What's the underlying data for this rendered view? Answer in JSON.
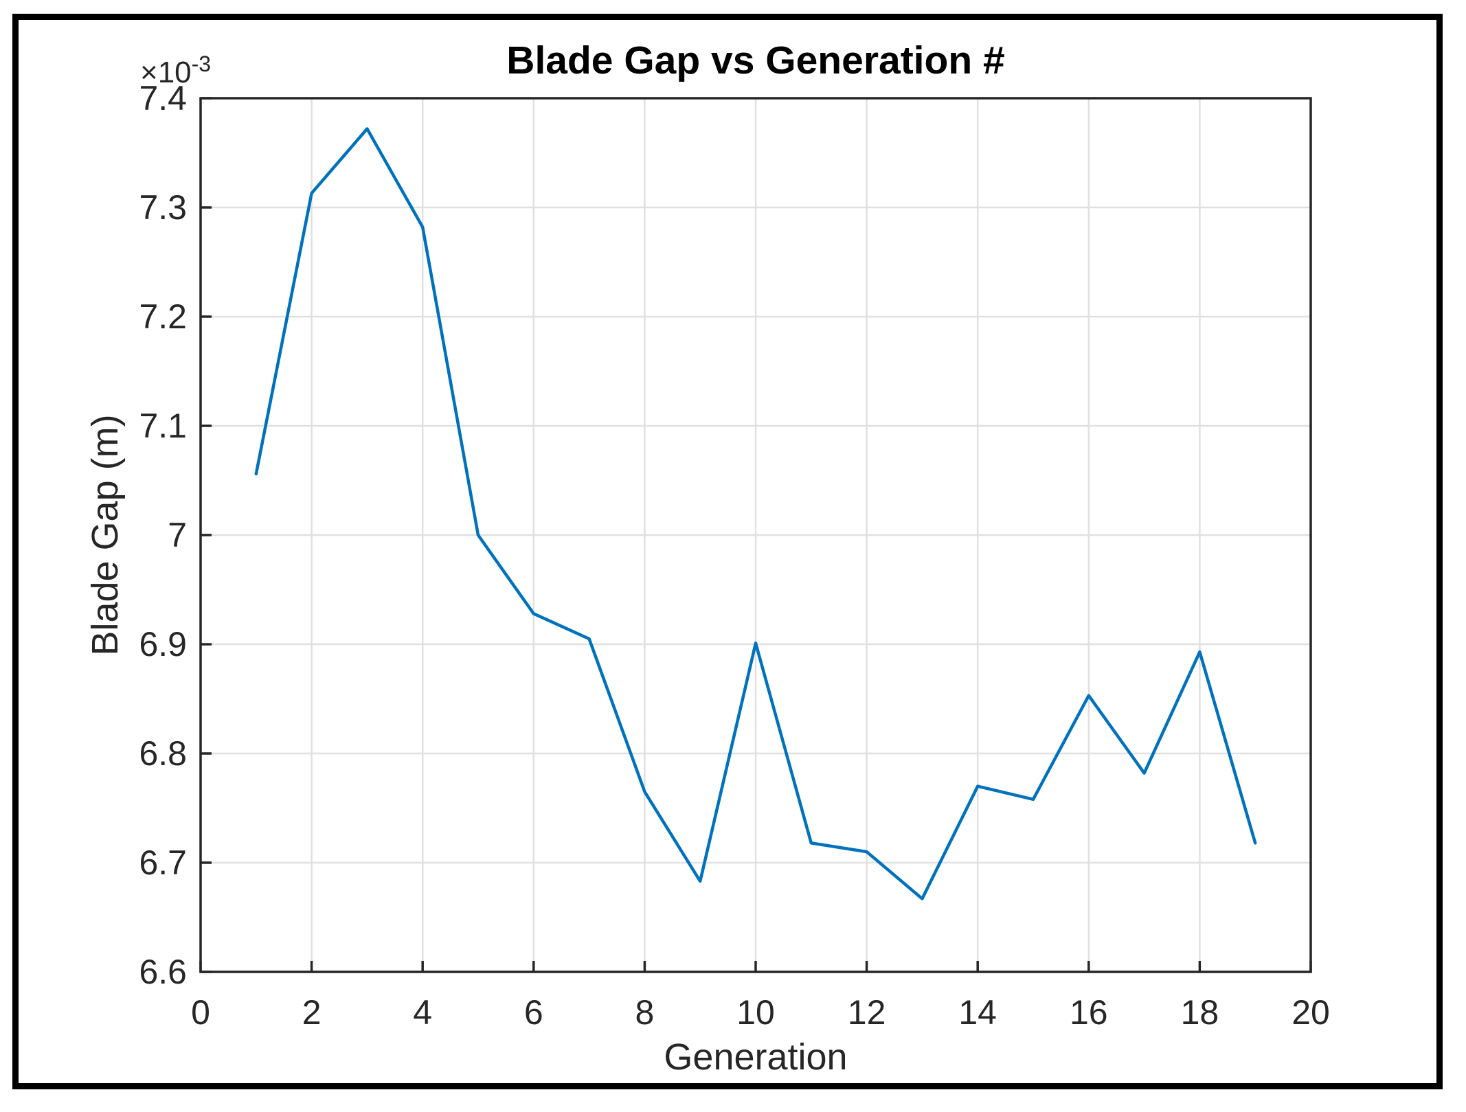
{
  "figure": {
    "background": "#ffffff",
    "border_color": "#000000"
  },
  "chart_data": {
    "type": "line",
    "title": "Blade Gap vs Generation #",
    "xlabel": "Generation",
    "ylabel": "Blade Gap (m)",
    "y_multiplier": {
      "base": "×10",
      "exponent": "-3"
    },
    "xlim": [
      0,
      20
    ],
    "ylim_e3": [
      6.6,
      7.4
    ],
    "grid": true,
    "grid_color": "#e0e0e0",
    "axis_color": "#262626",
    "x_ticks": {
      "values": [
        0,
        2,
        4,
        6,
        8,
        10,
        12,
        14,
        16,
        18,
        20
      ],
      "labels": [
        "0",
        "2",
        "4",
        "6",
        "8",
        "10",
        "12",
        "14",
        "16",
        "18",
        "20"
      ]
    },
    "y_ticks": {
      "values": [
        6.6,
        6.7,
        6.8,
        6.9,
        7.0,
        7.1,
        7.2,
        7.3,
        7.4
      ],
      "labels": [
        "6.6",
        "6.7",
        "6.8",
        "6.9",
        "7",
        "7.1",
        "7.2",
        "7.3",
        "7.4"
      ]
    },
    "series": [
      {
        "name": "Blade Gap",
        "color": "#0072BD",
        "x": [
          1,
          2,
          3,
          4,
          5,
          6,
          7,
          8,
          9,
          10,
          11,
          12,
          13,
          14,
          15,
          16,
          17,
          18,
          19
        ],
        "y_e3": [
          7.056,
          7.313,
          7.372,
          7.282,
          7.0,
          6.928,
          6.905,
          6.765,
          6.683,
          6.901,
          6.718,
          6.71,
          6.667,
          6.77,
          6.758,
          6.853,
          6.782,
          6.893,
          6.718
        ]
      }
    ]
  }
}
